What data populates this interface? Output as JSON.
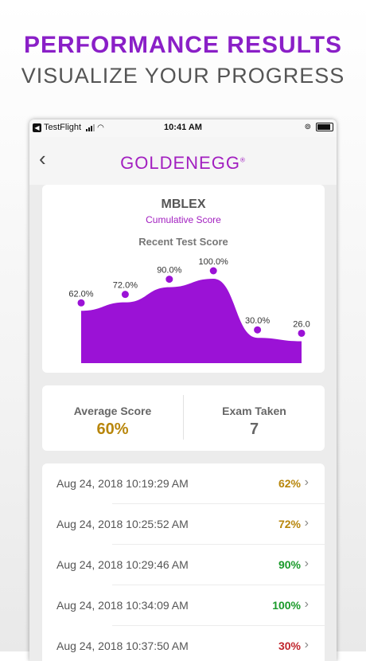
{
  "promo": {
    "title": "PERFORMANCE RESULTS",
    "subtitle": "VISUALIZE YOUR PROGRESS"
  },
  "status_bar": {
    "carrier": "TestFlight",
    "time": "10:41 AM"
  },
  "nav": {
    "back_icon": "chevron-left",
    "logo_text": "GOLDENEGG",
    "logo_mark": "®"
  },
  "chart_card": {
    "title": "MBLEX",
    "subtitle": "Cumulative Score",
    "heading": "Recent Test Score"
  },
  "chart_data": {
    "type": "area",
    "values": [
      62,
      72,
      90,
      100,
      30,
      26
    ],
    "labels": [
      "62.0%",
      "72.0%",
      "90.0%",
      "100.0%",
      "30.0%",
      "26.0"
    ],
    "ylim": [
      0,
      100
    ],
    "color": "#9b12d6"
  },
  "stats": {
    "average_label": "Average Score",
    "average_value": "60%",
    "average_color": "#b8860b",
    "exams_label": "Exam Taken",
    "exams_value": "7",
    "exams_color": "#666666"
  },
  "results": [
    {
      "date": "Aug 24, 2018 10:19:29 AM",
      "score": "62%",
      "color": "#b8860b"
    },
    {
      "date": "Aug 24, 2018 10:25:52 AM",
      "score": "72%",
      "color": "#b8860b"
    },
    {
      "date": "Aug 24, 2018 10:29:46 AM",
      "score": "90%",
      "color": "#1a9a2a"
    },
    {
      "date": "Aug 24, 2018 10:34:09 AM",
      "score": "100%",
      "color": "#1a9a2a"
    },
    {
      "date": "Aug 24, 2018 10:37:50 AM",
      "score": "30%",
      "color": "#c0262d"
    }
  ]
}
